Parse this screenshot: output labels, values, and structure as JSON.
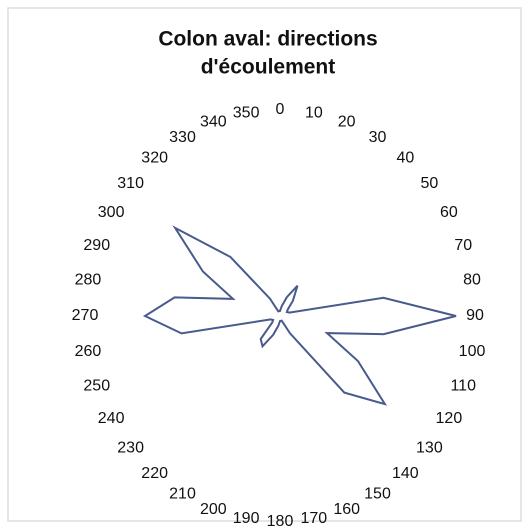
{
  "chart_data": {
    "type": "polar",
    "title": [
      "Colon aval: directions",
      "d'écoulement"
    ],
    "thetaticks": [
      0,
      10,
      20,
      30,
      40,
      50,
      60,
      70,
      80,
      90,
      100,
      110,
      120,
      130,
      140,
      150,
      160,
      170,
      180,
      190,
      200,
      210,
      220,
      230,
      240,
      250,
      260,
      270,
      280,
      290,
      300,
      310,
      320,
      330,
      340,
      350
    ],
    "theta": [
      0,
      10,
      20,
      30,
      40,
      50,
      60,
      70,
      80,
      90,
      100,
      110,
      120,
      130,
      140,
      150,
      160,
      170,
      180,
      190,
      200,
      210,
      220,
      230,
      240,
      250,
      260,
      270,
      280,
      290,
      300,
      310,
      320,
      330,
      340,
      350
    ],
    "values": [
      5,
      10,
      20,
      35,
      20,
      10,
      8,
      10,
      105,
      176,
      105,
      50,
      90,
      137,
      100,
      20,
      5,
      5,
      5,
      10,
      20,
      35,
      30,
      10,
      8,
      10,
      100,
      135,
      107,
      50,
      89,
      137,
      77,
      20,
      5,
      5
    ],
    "rlim": [
      0,
      180
    ],
    "color": "#4a5a8c"
  }
}
